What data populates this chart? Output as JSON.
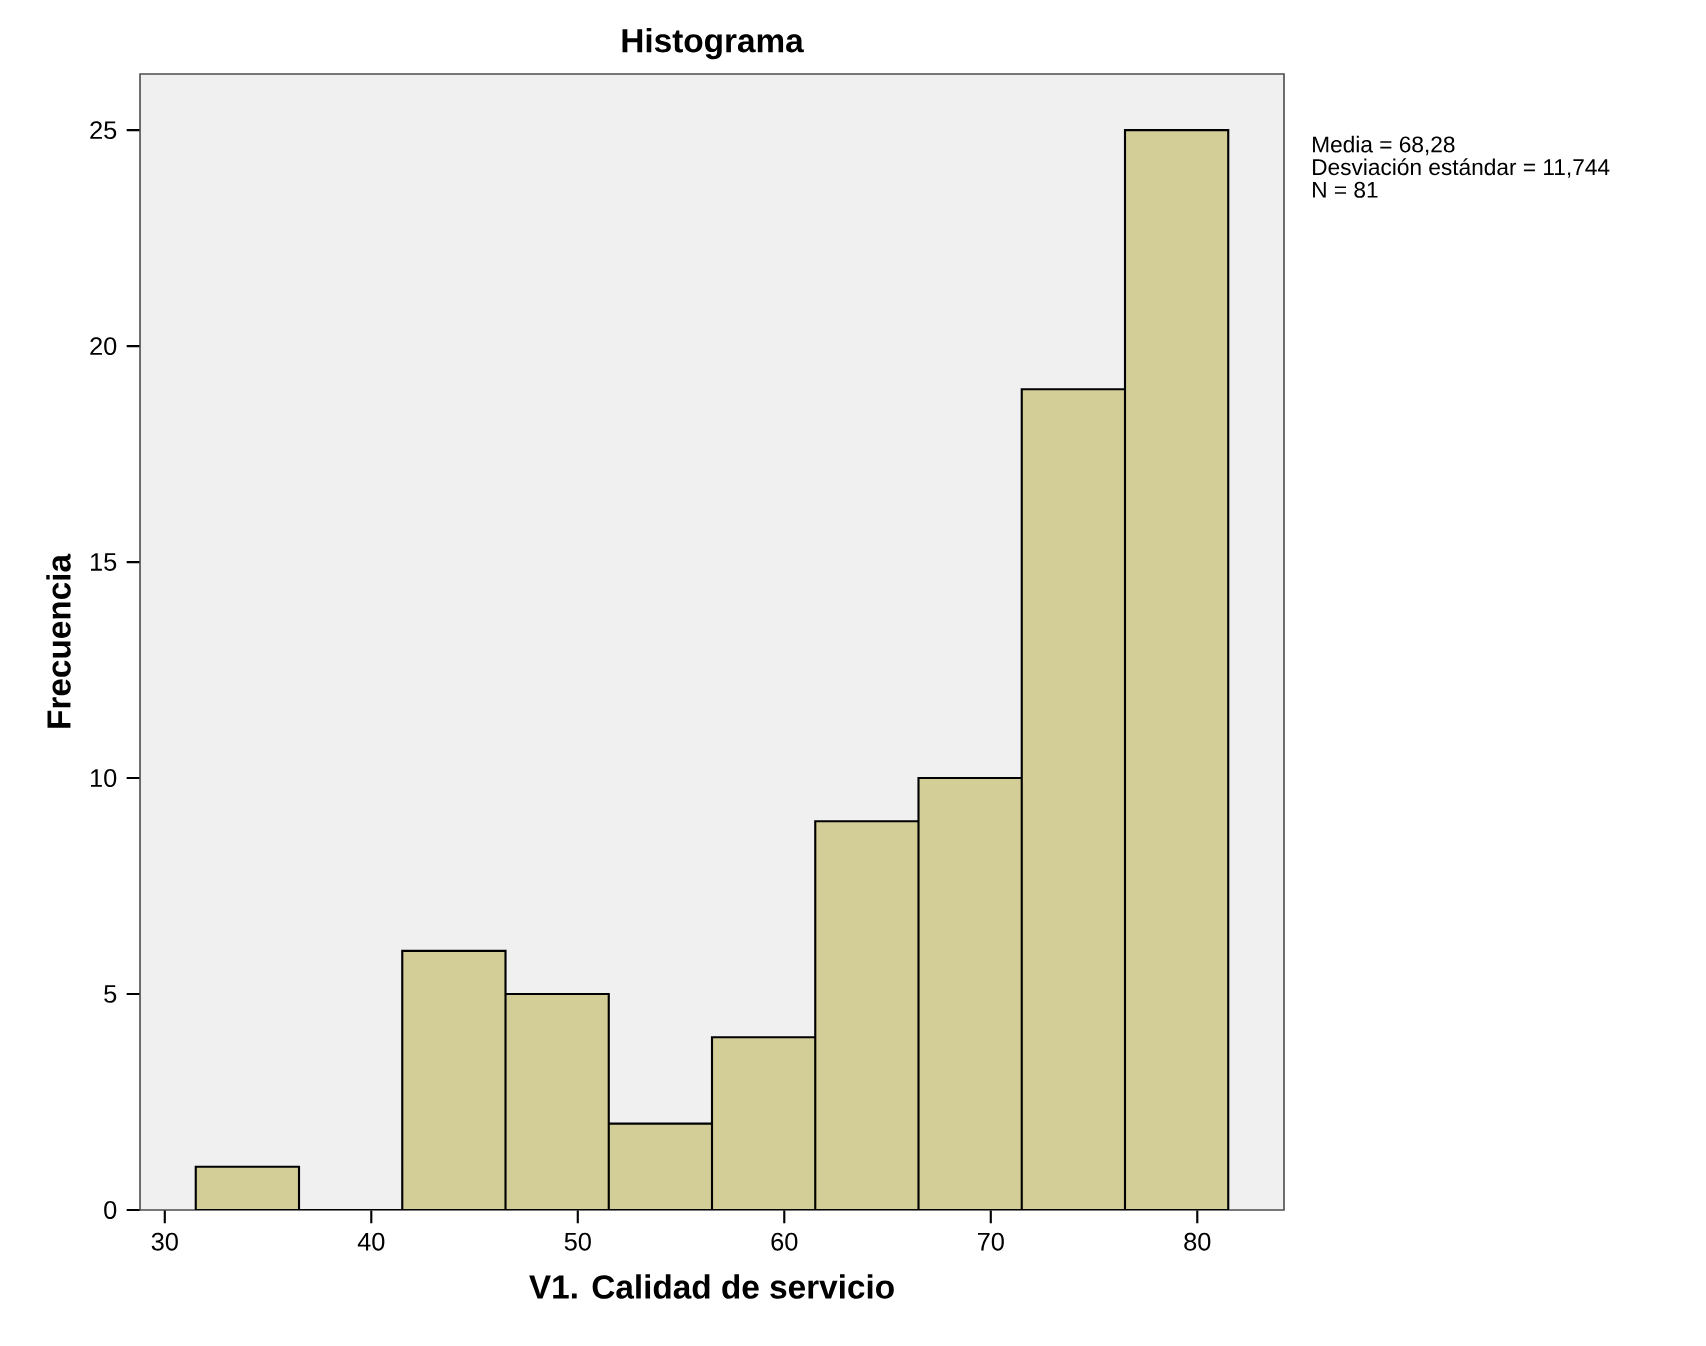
{
  "chart_data": {
    "type": "histogram",
    "title": "Histograma",
    "xlabel": "V1. Calidad de servicio",
    "ylabel": "Frecuencia",
    "bins": [
      31.5,
      36.5,
      41.5,
      46.5,
      51.5,
      56.5,
      61.5,
      66.5,
      71.5,
      76.5,
      81.5
    ],
    "values": [
      1,
      0,
      6,
      5,
      2,
      4,
      9,
      10,
      19,
      25
    ],
    "color": "#d3ce97",
    "xlim": [
      28.8,
      84.2
    ],
    "xticks": [
      30,
      40,
      50,
      60,
      70,
      80
    ],
    "ylim": [
      0,
      26.3
    ],
    "yticks": [
      0,
      5,
      10,
      15,
      20,
      25
    ],
    "grid": false,
    "annotations": [
      "Media = 68,28",
      "Desviación estándar = 11,744",
      "N = 81"
    ]
  }
}
